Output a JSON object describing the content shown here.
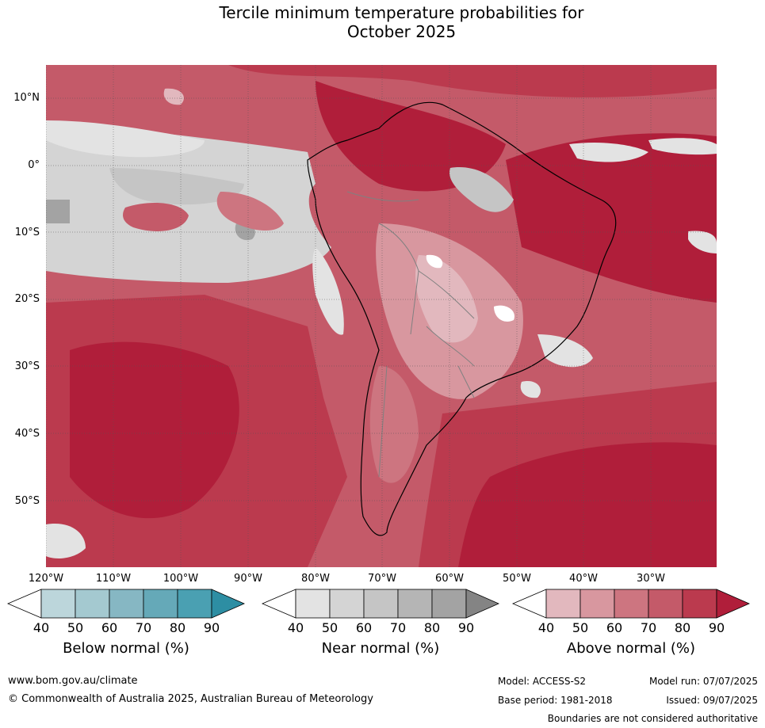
{
  "title_line1": "Tercile minimum temperature probabilities for",
  "title_line2": "October 2025",
  "map": {
    "latitude_labels": [
      "10°N",
      "0°",
      "10°S",
      "20°S",
      "30°S",
      "40°S",
      "50°S"
    ],
    "longitude_labels": [
      "120°W",
      "110°W",
      "100°W",
      "90°W",
      "80°W",
      "70°W",
      "60°W",
      "50°W",
      "40°W",
      "30°W"
    ]
  },
  "legends": [
    {
      "label": "Below normal (%)",
      "ticks": [
        "40",
        "50",
        "60",
        "70",
        "80",
        "90"
      ],
      "colors": [
        "#ffffff",
        "#bcd6db",
        "#a4c9d0",
        "#86b7c3",
        "#65a9b8",
        "#4aa0b2",
        "#2d8ea3"
      ]
    },
    {
      "label": "Near normal (%)",
      "ticks": [
        "40",
        "50",
        "60",
        "70",
        "80",
        "90"
      ],
      "colors": [
        "#ffffff",
        "#e3e3e3",
        "#d4d4d4",
        "#c5c5c5",
        "#b5b5b5",
        "#a3a3a3",
        "#848484"
      ]
    },
    {
      "label": "Above normal (%)",
      "ticks": [
        "40",
        "50",
        "60",
        "70",
        "80",
        "90"
      ],
      "colors": [
        "#ffffff",
        "#e2b8be",
        "#d8979f",
        "#cd7580",
        "#c45a69",
        "#bb3a4e",
        "#b01e3a"
      ]
    }
  ],
  "footer": {
    "website": "www.bom.gov.au/climate",
    "copyright": "© Commonwealth of Australia 2025, Australian Bureau of Meteorology",
    "model": "Model: ACCESS-S2",
    "base_period": "Base period: 1981-2018",
    "model_run": "Model run: 07/07/2025",
    "issued": "Issued: 09/07/2025",
    "disclaimer": "Boundaries are not considered authoritative"
  }
}
